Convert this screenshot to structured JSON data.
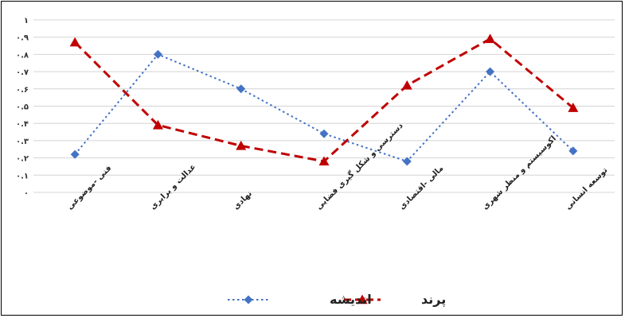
{
  "chart_data": {
    "type": "line",
    "title": "",
    "xlabel": "",
    "ylabel": "",
    "categories": [
      "فنی -موضوعی",
      "عدالت و برابری",
      "نهادی",
      "دسترسی و شکل گیری فضایی",
      "مالی -اقتصادی",
      "اکوسیستم و منظر شهری",
      "توسعه انسانی"
    ],
    "y_tick_labels": [
      "۰",
      "۰.۱",
      "۰.۲",
      "۰.۳",
      "۰.۴",
      "۰.۵",
      "۰.۶",
      "۰.۷",
      "۰.۸",
      "۰.۹",
      "۱"
    ],
    "ylim": [
      0,
      1
    ],
    "grid": true,
    "legend_position": "bottom",
    "series": [
      {
        "name": "اندیشه",
        "values": [
          0.22,
          0.8,
          0.6,
          0.34,
          0.18,
          0.7,
          0.24
        ],
        "color": "#4472C4",
        "marker": "diamond",
        "line_style": "dotted"
      },
      {
        "name": "پرند",
        "values": [
          0.87,
          0.39,
          0.27,
          0.18,
          0.62,
          0.89,
          0.49
        ],
        "color": "#C00000",
        "marker": "triangle",
        "line_style": "dashed"
      }
    ]
  }
}
